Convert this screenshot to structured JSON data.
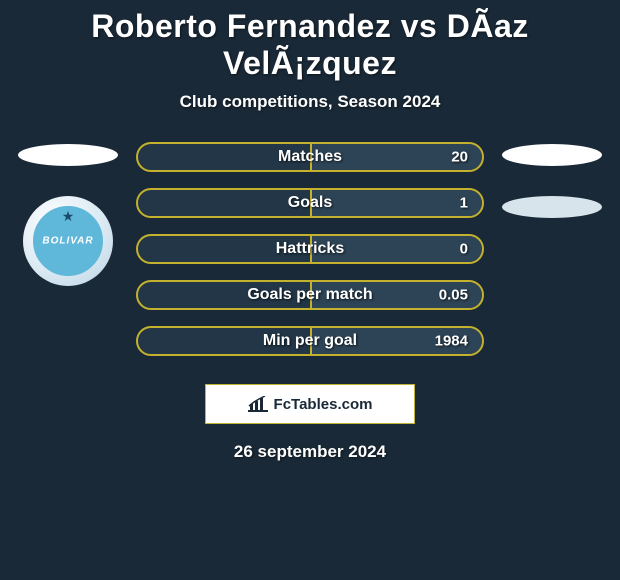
{
  "title": "Roberto Fernandez vs DÃ­az VelÃ¡zquez",
  "subtitle": "Club competitions, Season 2024",
  "date": "26 september 2024",
  "credit": "FcTables.com",
  "badge": {
    "text": "BOLIVAR"
  },
  "colors": {
    "background": "#1a2937",
    "bar_border": "#c4b12e",
    "bar_fill_dark": "#223647",
    "bar_fill_light": "#2d4456",
    "text": "#ffffff"
  },
  "bars": [
    {
      "label": "Matches",
      "value": "20",
      "right_fill_pct": 50
    },
    {
      "label": "Goals",
      "value": "1",
      "right_fill_pct": 50
    },
    {
      "label": "Hattricks",
      "value": "0",
      "right_fill_pct": 50
    },
    {
      "label": "Goals per match",
      "value": "0.05",
      "right_fill_pct": 50
    },
    {
      "label": "Min per goal",
      "value": "1984",
      "right_fill_pct": 50
    }
  ]
}
